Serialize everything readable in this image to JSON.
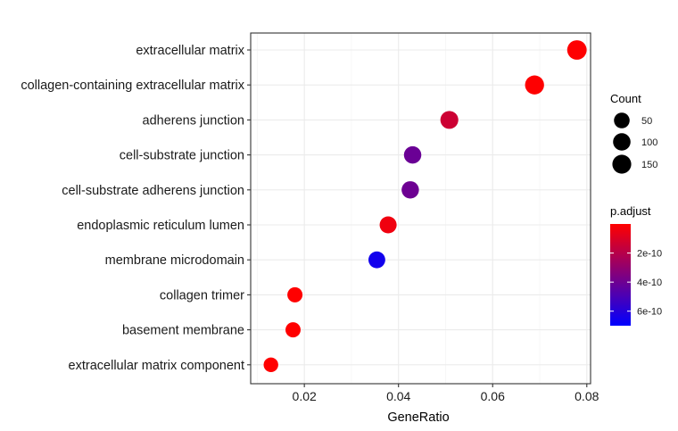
{
  "chart_data": {
    "type": "scatter",
    "xlabel": "GeneRatio",
    "ylabel": "",
    "xlim": [
      0.0086,
      0.0808
    ],
    "xticks": [
      0.02,
      0.04,
      0.06,
      0.08
    ],
    "xtick_labels": [
      "0.02",
      "0.04",
      "0.06",
      "0.08"
    ],
    "grid": true,
    "legend_position": "right",
    "categories": [
      "extracellular matrix",
      "collagen-containing extracellular matrix",
      "adherens junction",
      "cell-substrate junction",
      "cell-substrate adherens junction",
      "endoplasmic reticulum lumen",
      "membrane microdomain",
      "collagen trimer",
      "basement membrane",
      "extracellular matrix component"
    ],
    "points": [
      {
        "term": "extracellular matrix",
        "gene_ratio": 0.0779,
        "count": 175,
        "p_adjust": 2e-12
      },
      {
        "term": "collagen-containing extracellular matrix",
        "gene_ratio": 0.0689,
        "count": 155,
        "p_adjust": 3e-12
      },
      {
        "term": "adherens junction",
        "gene_ratio": 0.0508,
        "count": 114,
        "p_adjust": 1.4e-10
      },
      {
        "term": "cell-substrate junction",
        "gene_ratio": 0.043,
        "count": 97,
        "p_adjust": 4.1e-10
      },
      {
        "term": "cell-substrate adherens junction",
        "gene_ratio": 0.0425,
        "count": 96,
        "p_adjust": 4e-10
      },
      {
        "term": "endoplasmic reticulum lumen",
        "gene_ratio": 0.0378,
        "count": 85,
        "p_adjust": 4e-11
      },
      {
        "term": "membrane microdomain",
        "gene_ratio": 0.0354,
        "count": 80,
        "p_adjust": 6.5e-10
      },
      {
        "term": "collagen trimer",
        "gene_ratio": 0.018,
        "count": 40,
        "p_adjust": 1e-12
      },
      {
        "term": "basement membrane",
        "gene_ratio": 0.0176,
        "count": 39,
        "p_adjust": 1e-12
      },
      {
        "term": "extracellular matrix component",
        "gene_ratio": 0.0129,
        "count": 29,
        "p_adjust": 1e-12
      }
    ],
    "size_legend": {
      "title": "Count",
      "values": [
        50,
        100,
        150
      ],
      "labels": [
        "50",
        "100",
        "150"
      ]
    },
    "color_legend": {
      "title": "p.adjust",
      "range": [
        0,
        7e-10
      ],
      "ticks": [
        2e-10,
        4e-10,
        6e-10
      ],
      "labels": [
        "2e-10",
        "4e-10",
        "6e-10"
      ],
      "low_color": "#ff0000",
      "high_color": "#0000ff"
    }
  }
}
